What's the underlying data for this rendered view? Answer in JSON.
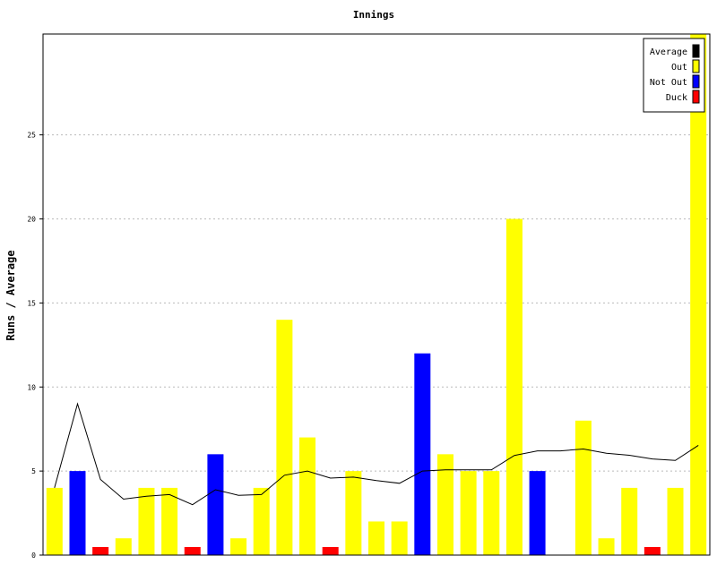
{
  "chart_data": {
    "type": "bar",
    "title": "Innings",
    "xlabel": "",
    "ylabel": "Runs / Average",
    "ylim": [
      0,
      31
    ],
    "yticks": [
      0,
      5,
      10,
      15,
      20,
      25
    ],
    "grid": true,
    "legend_position": "top-right",
    "legend": [
      {
        "name": "Average",
        "color": "#000000"
      },
      {
        "name": "Out",
        "color": "#ffff00"
      },
      {
        "name": "Not Out",
        "color": "#0000ff"
      },
      {
        "name": "Duck",
        "color": "#ff0000"
      }
    ],
    "innings": [
      {
        "runs": 4,
        "status": "Out"
      },
      {
        "runs": 5,
        "status": "Not Out"
      },
      {
        "runs": 0,
        "status": "Duck"
      },
      {
        "runs": 1,
        "status": "Out"
      },
      {
        "runs": 4,
        "status": "Out"
      },
      {
        "runs": 4,
        "status": "Out"
      },
      {
        "runs": 0,
        "status": "Duck"
      },
      {
        "runs": 6,
        "status": "Not Out"
      },
      {
        "runs": 1,
        "status": "Out"
      },
      {
        "runs": 4,
        "status": "Out"
      },
      {
        "runs": 14,
        "status": "Out"
      },
      {
        "runs": 7,
        "status": "Out"
      },
      {
        "runs": 0,
        "status": "Duck"
      },
      {
        "runs": 5,
        "status": "Out"
      },
      {
        "runs": 2,
        "status": "Out"
      },
      {
        "runs": 2,
        "status": "Out"
      },
      {
        "runs": 12,
        "status": "Not Out"
      },
      {
        "runs": 6,
        "status": "Out"
      },
      {
        "runs": 5,
        "status": "Out"
      },
      {
        "runs": 5,
        "status": "Out"
      },
      {
        "runs": 20,
        "status": "Out"
      },
      {
        "runs": 5,
        "status": "Not Out"
      },
      {
        "runs": null,
        "status": ""
      },
      {
        "runs": 8,
        "status": "Out"
      },
      {
        "runs": 1,
        "status": "Out"
      },
      {
        "runs": 4,
        "status": "Out"
      },
      {
        "runs": 0,
        "status": "Duck"
      },
      {
        "runs": 4,
        "status": "Out"
      },
      {
        "runs": 31,
        "status": "Out"
      }
    ],
    "average": [
      4.0,
      9.0,
      4.5,
      3.33,
      3.5,
      3.6,
      3.0,
      3.89,
      3.56,
      3.6,
      4.75,
      5.0,
      4.58,
      4.64,
      4.43,
      4.27,
      5.0,
      5.07,
      5.07,
      5.07,
      5.93,
      6.2,
      6.2,
      6.31,
      6.06,
      5.94,
      5.72,
      5.63,
      6.53
    ]
  }
}
